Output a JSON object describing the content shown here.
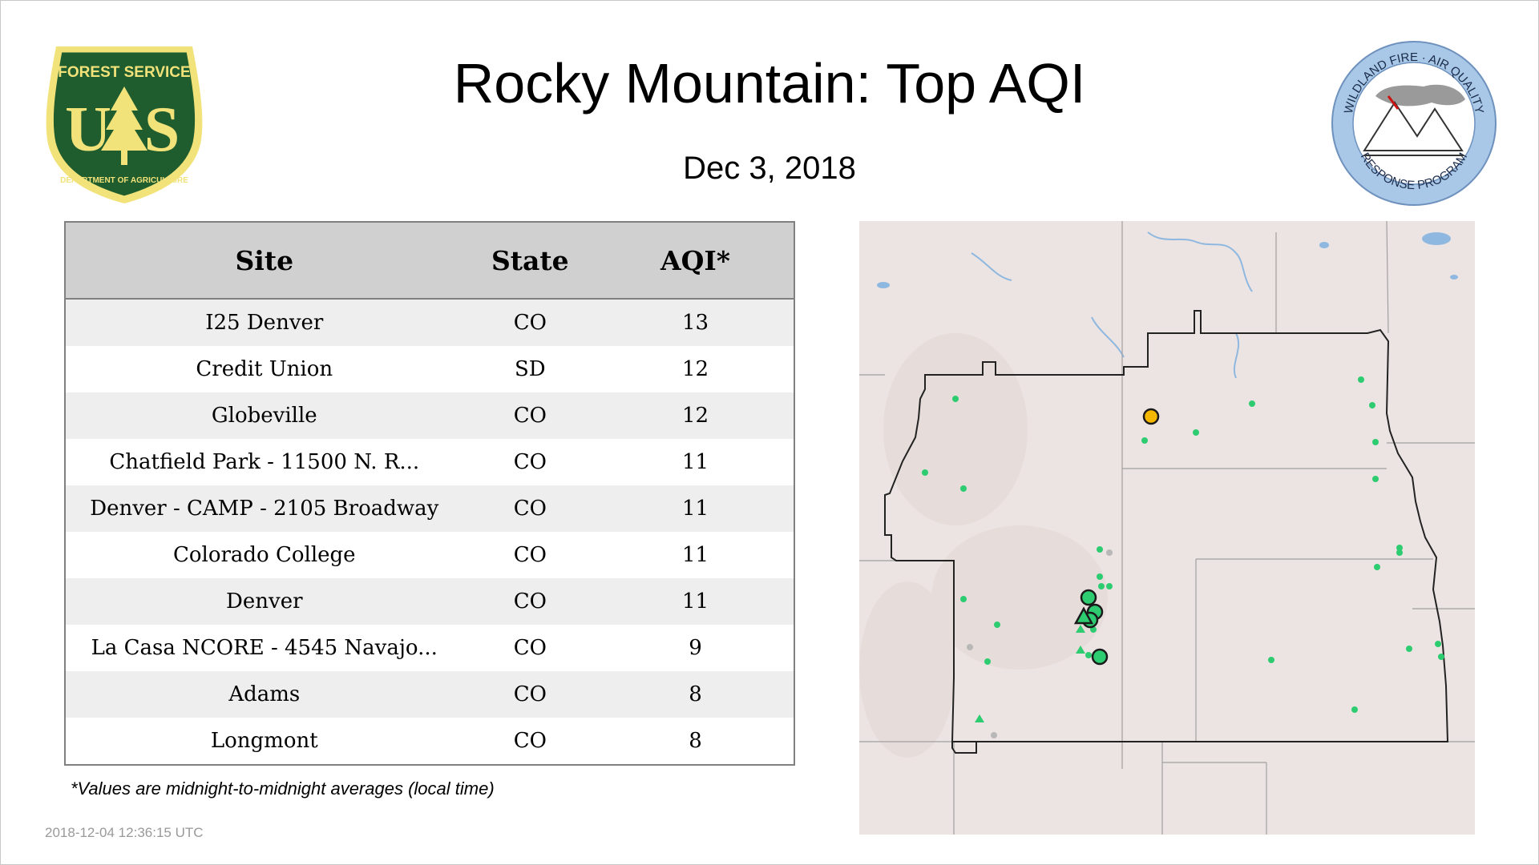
{
  "title": "Rocky Mountain: Top AQI",
  "date": "Dec  3, 2018",
  "logos": {
    "usfs": {
      "top_text": "FOREST SERVICE",
      "bottom_text": "DEPARTMENT OF AGRICULTURE",
      "letters": "US"
    },
    "wfaq": {
      "top_text": "WILDLAND FIRE · AIR QUALITY",
      "bottom_text": "RESPONSE PROGRAM"
    }
  },
  "table": {
    "headers": {
      "site": "Site",
      "state": "State",
      "aqi": "AQI*"
    },
    "rows": [
      {
        "site": "I25 Denver",
        "state": "CO",
        "aqi": "13"
      },
      {
        "site": "Credit Union",
        "state": "SD",
        "aqi": "12"
      },
      {
        "site": "Globeville",
        "state": "CO",
        "aqi": "12"
      },
      {
        "site": "Chatfield Park - 11500 N. R...",
        "state": "CO",
        "aqi": "11"
      },
      {
        "site": "Denver - CAMP - 2105 Broadway",
        "state": "CO",
        "aqi": "11"
      },
      {
        "site": "Colorado College",
        "state": "CO",
        "aqi": "11"
      },
      {
        "site": "Denver",
        "state": "CO",
        "aqi": "11"
      },
      {
        "site": "La Casa NCORE - 4545 Navajo...",
        "state": "CO",
        "aqi": "9"
      },
      {
        "site": "Adams",
        "state": "CO",
        "aqi": "8"
      },
      {
        "site": "Longmont",
        "state": "CO",
        "aqi": "8"
      }
    ]
  },
  "footnote": "*Values are midnight-to-midnight averages (local time)",
  "timestamp": "2018-12-04 12:36:15 UTC",
  "map": {
    "colors": {
      "good": "#2ecc71",
      "moderate": "#f5b800",
      "no_data": "#b8b8b8",
      "region_border": "#222222",
      "state_border": "#a0a0a0",
      "water": "#8fb8e0",
      "land": "#ece4e2"
    },
    "markers": "monitor sites colored by AQI category; larger circles for top sites"
  }
}
